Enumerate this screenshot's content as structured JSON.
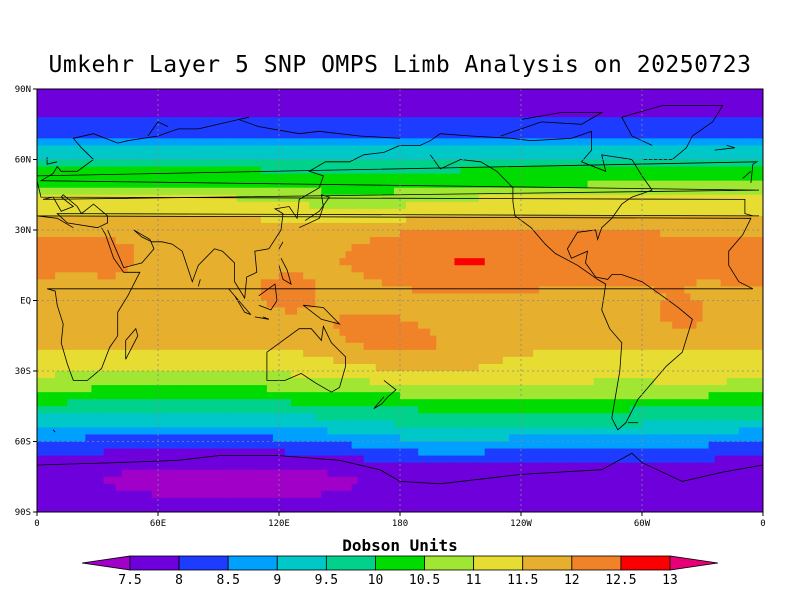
{
  "title": "Umkehr Layer 5 SNP OMPS Limb Analysis on 20250723",
  "map": {
    "lat_labels": [
      "90N",
      "60N",
      "30N",
      "EQ",
      "30S",
      "60S",
      "90S"
    ],
    "lon_labels": [
      "0",
      "60E",
      "120E",
      "180",
      "120W",
      "60W",
      "0"
    ],
    "lat_values": [
      90,
      60,
      30,
      0,
      -30,
      -60,
      -90
    ],
    "lon_values": [
      0,
      60,
      120,
      180,
      240,
      300,
      360
    ],
    "grid": true
  },
  "colorbar": {
    "title": "Dobson Units",
    "tick_labels": [
      "7.5",
      "8",
      "8.5",
      "9",
      "9.5",
      "10",
      "10.5",
      "11",
      "11.5",
      "12",
      "12.5",
      "13"
    ],
    "colors": [
      "#a000c8",
      "#6e00dc",
      "#1e3cff",
      "#00a0ff",
      "#00c8c8",
      "#00d28c",
      "#00dc00",
      "#a0e632",
      "#e6dc32",
      "#e6af2d",
      "#f08228",
      "#fa0000",
      "#e60078"
    ],
    "boundaries": [
      7.5,
      8,
      8.5,
      9,
      9.5,
      10,
      10.5,
      11,
      11.5,
      12,
      12.5,
      13
    ]
  }
}
